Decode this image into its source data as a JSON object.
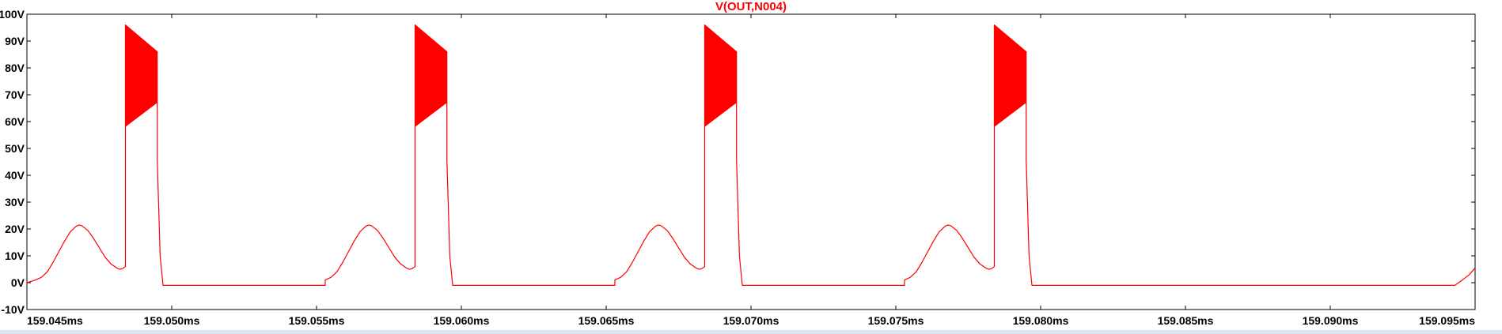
{
  "chart_data": {
    "type": "line",
    "title": "V(OUT,N004)",
    "xlabel": "",
    "ylabel": "",
    "xlim": [
      159.045,
      159.095
    ],
    "ylim": [
      -10,
      100
    ],
    "grid": false,
    "x_ticks": [
      159.045,
      159.05,
      159.055,
      159.06,
      159.065,
      159.07,
      159.075,
      159.08,
      159.085,
      159.09,
      159.095
    ],
    "x_tick_labels": [
      "159.045ms",
      "159.050ms",
      "159.055ms",
      "159.060ms",
      "159.065ms",
      "159.070ms",
      "159.075ms",
      "159.080ms",
      "159.085ms",
      "159.090ms",
      "159.095ms"
    ],
    "y_ticks": [
      -10,
      0,
      10,
      20,
      30,
      40,
      50,
      60,
      70,
      80,
      90,
      100
    ],
    "y_tick_labels": [
      "-10V",
      "0V",
      "10V",
      "20V",
      "30V",
      "40V",
      "50V",
      "60V",
      "70V",
      "80V",
      "90V",
      "100V"
    ],
    "series": [
      {
        "name": "V(OUT,N004)",
        "color": "#ff0000",
        "period_ms": 0.01,
        "first_cycle_start_ms": 159.0453,
        "cycle_points": [
          [
            0.0,
            1.0
          ],
          [
            0.0002,
            2.0
          ],
          [
            0.0004,
            4.0
          ],
          [
            0.0006,
            7.5
          ],
          [
            0.0008,
            11.5
          ],
          [
            0.001,
            15.5
          ],
          [
            0.0012,
            19.0
          ],
          [
            0.0014,
            21.0
          ],
          [
            0.0015,
            21.5
          ],
          [
            0.0016,
            21.2
          ],
          [
            0.0018,
            19.5
          ],
          [
            0.002,
            16.5
          ],
          [
            0.0022,
            13.0
          ],
          [
            0.0024,
            9.5
          ],
          [
            0.0026,
            7.0
          ],
          [
            0.0028,
            5.5
          ],
          [
            0.0029,
            5.0
          ],
          [
            0.003,
            5.2
          ],
          [
            0.0031,
            6.0
          ],
          [
            0.0031,
            96.0
          ],
          [
            0.0042,
            86.0
          ],
          [
            0.0042,
            46.0
          ],
          [
            0.0043,
            10.0
          ],
          [
            0.0044,
            -1.0
          ],
          [
            0.01,
            -1.0
          ]
        ],
        "burst_band": {
          "x_start_offset": 0.0031,
          "x_end_offset": 0.0042,
          "upper_start": 96,
          "upper_end": 86,
          "lower_start": 58,
          "lower_end": 67
        },
        "leading_edge": [
          [
            159.045,
            0.0
          ],
          [
            159.0453,
            1.0
          ]
        ],
        "trailing_edge": [
          [
            159.0943,
            -1.0
          ],
          [
            159.0945,
            0.5
          ],
          [
            159.0948,
            3.0
          ],
          [
            159.095,
            5.5
          ]
        ]
      }
    ]
  }
}
